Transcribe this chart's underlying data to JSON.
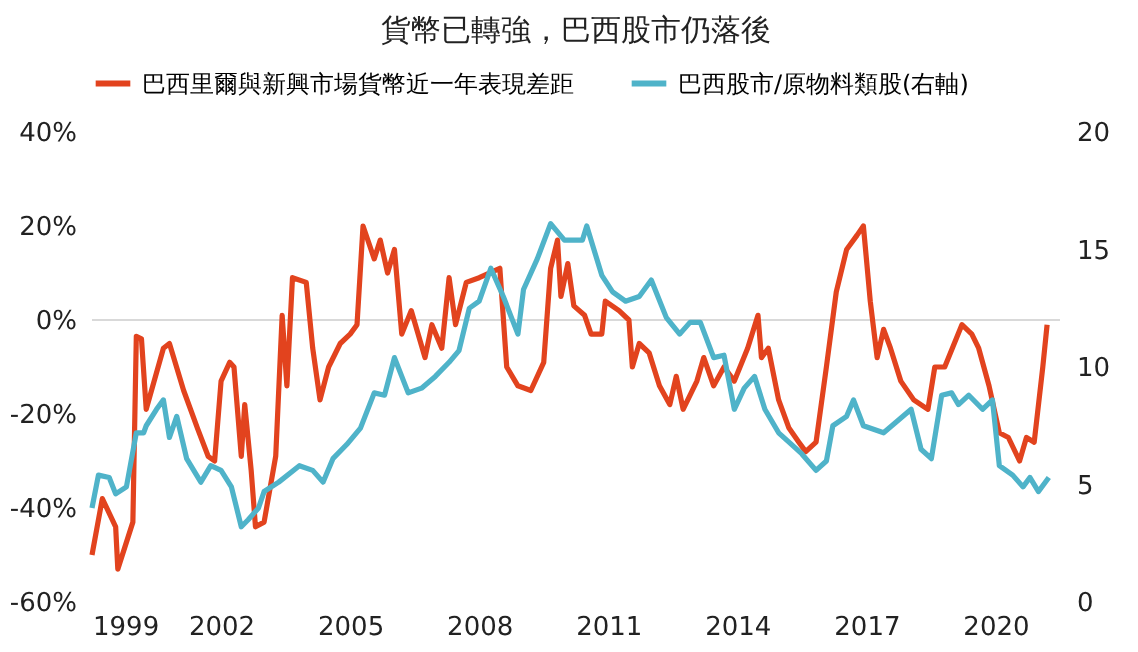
{
  "chart_data": {
    "type": "line",
    "title": "貨幣已轉強，巴西股市仍落後",
    "xlim": [
      1999,
      2021.5
    ],
    "xticks": [
      1999,
      2002,
      2005,
      2008,
      2011,
      2014,
      2017,
      2020
    ],
    "ylim": [
      -60,
      40
    ],
    "yticks": [
      {
        "value": -60,
        "label": "-60%"
      },
      {
        "value": -40,
        "label": "-40%"
      },
      {
        "value": -20,
        "label": "-20%"
      },
      {
        "value": 0,
        "label": "0%"
      },
      {
        "value": 20,
        "label": "20%"
      },
      {
        "value": 40,
        "label": "40%"
      }
    ],
    "y2lim": [
      0,
      20
    ],
    "y2ticks": [
      0,
      5,
      10,
      15,
      20
    ],
    "grid": false,
    "legend": "top",
    "line_style": "solid",
    "marker": "none",
    "ref_lines": [
      {
        "axis": "y",
        "value": 0,
        "color": "#d9d9d9"
      }
    ],
    "series": [
      {
        "name": "巴西里爾與新興市場貨幣近一年表現差距",
        "color": "#e2431e",
        "x": [
          1999.0,
          1999.24,
          1999.55,
          1999.6,
          1999.95,
          2000.03,
          2000.15,
          2000.26,
          2000.66,
          2000.8,
          2001.13,
          2001.45,
          2001.7,
          2001.85,
          2002.0,
          2002.2,
          2002.3,
          2002.47,
          2002.55,
          2002.7,
          2002.8,
          2003.0,
          2003.27,
          2003.42,
          2003.53,
          2003.66,
          2003.98,
          2004.13,
          2004.3,
          2004.5,
          2004.77,
          2005.0,
          2005.16,
          2005.3,
          2005.56,
          2005.7,
          2005.87,
          2006.03,
          2006.2,
          2006.42,
          2006.74,
          2006.9,
          2007.13,
          2007.3,
          2007.45,
          2007.7,
          2008.0,
          2008.48,
          2008.64,
          2008.9,
          2009.2,
          2009.5,
          2009.66,
          2009.82,
          2009.9,
          2010.06,
          2010.2,
          2010.45,
          2010.6,
          2010.85,
          2010.93,
          2011.25,
          2011.48,
          2011.56,
          2011.72,
          2011.95,
          2012.19,
          2012.43,
          2012.58,
          2012.74,
          2013.06,
          2013.22,
          2013.45,
          2013.69,
          2013.93,
          2014.24,
          2014.48,
          2014.56,
          2014.72,
          2014.96,
          2015.2,
          2015.43,
          2015.59,
          2015.83,
          2016.07,
          2016.3,
          2016.54,
          2016.78,
          2016.93,
          2017.09,
          2017.25,
          2017.4,
          2017.56,
          2017.8,
          2018.1,
          2018.43,
          2018.59,
          2018.82,
          2019.22,
          2019.45,
          2019.61,
          2019.85,
          2020.09,
          2020.3,
          2020.56,
          2020.72,
          2020.9,
          2021.1,
          2021.2
        ],
        "values": [
          -50,
          -38,
          -44,
          -53,
          -43,
          -3.5,
          -4,
          -19,
          -6,
          -5,
          -15,
          -23,
          -29,
          -30,
          -13,
          -9,
          -10,
          -29,
          -18,
          -32,
          -44,
          -43,
          -29,
          1,
          -14,
          9,
          8,
          -6,
          -17,
          -10,
          -5,
          -3,
          -1,
          20,
          13,
          17,
          10,
          15,
          -3,
          2,
          -8,
          -1,
          -6,
          9,
          -1,
          8,
          9,
          11,
          -10,
          -14,
          -15,
          -9,
          11,
          17,
          5,
          12,
          3,
          1,
          -3,
          -3,
          4,
          2,
          0,
          -10,
          -5,
          -7,
          -14,
          -18,
          -12,
          -19,
          -13,
          -8,
          -14,
          -10,
          -13,
          -6,
          1,
          -8,
          -6,
          -17,
          -23,
          -26,
          -28,
          -26,
          -10,
          6,
          15,
          18,
          20,
          4,
          -8,
          -2,
          -6,
          -13,
          -17,
          -19,
          -10,
          -10,
          -1,
          -3,
          -6,
          -14,
          -24,
          -25,
          -30,
          -25,
          -26,
          -10,
          -1
        ]
      },
      {
        "name": "巴西股市/原物料類股(右軸)",
        "color": "#4fb3c9",
        "axis": "y2",
        "x": [
          1999.0,
          1999.15,
          1999.4,
          1999.55,
          1999.8,
          2000.03,
          2000.2,
          2000.26,
          2000.5,
          2000.66,
          2000.8,
          2000.97,
          2001.2,
          2001.53,
          2001.76,
          2002.0,
          2002.24,
          2002.47,
          2002.63,
          2002.87,
          2003.0,
          2003.34,
          2003.82,
          2004.13,
          2004.37,
          2004.6,
          2004.92,
          2005.24,
          2005.56,
          2005.8,
          2006.03,
          2006.35,
          2006.66,
          2006.98,
          2007.3,
          2007.53,
          2007.77,
          2008.0,
          2008.27,
          2008.56,
          2008.9,
          2009.03,
          2009.35,
          2009.66,
          2009.98,
          2010.4,
          2010.5,
          2010.85,
          2011.1,
          2011.4,
          2011.72,
          2012.0,
          2012.35,
          2012.66,
          2012.9,
          2013.14,
          2013.45,
          2013.69,
          2013.93,
          2014.16,
          2014.4,
          2014.64,
          2014.96,
          2015.2,
          2015.5,
          2015.83,
          2016.07,
          2016.22,
          2016.54,
          2016.7,
          2016.93,
          2017.4,
          2017.72,
          2018.04,
          2018.27,
          2018.51,
          2018.75,
          2018.98,
          2019.14,
          2019.38,
          2019.7,
          2019.93,
          2020.09,
          2020.4,
          2020.64,
          2020.8,
          2021.0,
          2021.24
        ],
        "values": [
          4.0,
          5.4,
          5.3,
          4.6,
          4.9,
          7.2,
          7.2,
          7.5,
          8.2,
          8.6,
          7.0,
          7.9,
          6.1,
          5.1,
          5.8,
          5.6,
          4.9,
          3.2,
          3.5,
          4.0,
          4.7,
          5.1,
          5.8,
          5.6,
          5.1,
          6.1,
          6.7,
          7.4,
          8.9,
          8.8,
          10.4,
          8.9,
          9.1,
          9.6,
          10.2,
          10.7,
          12.5,
          12.8,
          14.2,
          13.0,
          11.4,
          13.3,
          14.6,
          16.1,
          15.4,
          15.4,
          16.0,
          13.9,
          13.2,
          12.8,
          13.0,
          13.7,
          12.1,
          11.4,
          11.9,
          11.9,
          10.4,
          10.5,
          8.2,
          9.1,
          9.6,
          8.2,
          7.2,
          6.8,
          6.3,
          5.6,
          6.0,
          7.5,
          7.9,
          8.6,
          7.5,
          7.2,
          7.7,
          8.2,
          6.5,
          6.1,
          8.8,
          8.9,
          8.4,
          8.8,
          8.2,
          8.6,
          5.8,
          5.4,
          4.9,
          5.3,
          4.7,
          5.3
        ]
      }
    ]
  }
}
